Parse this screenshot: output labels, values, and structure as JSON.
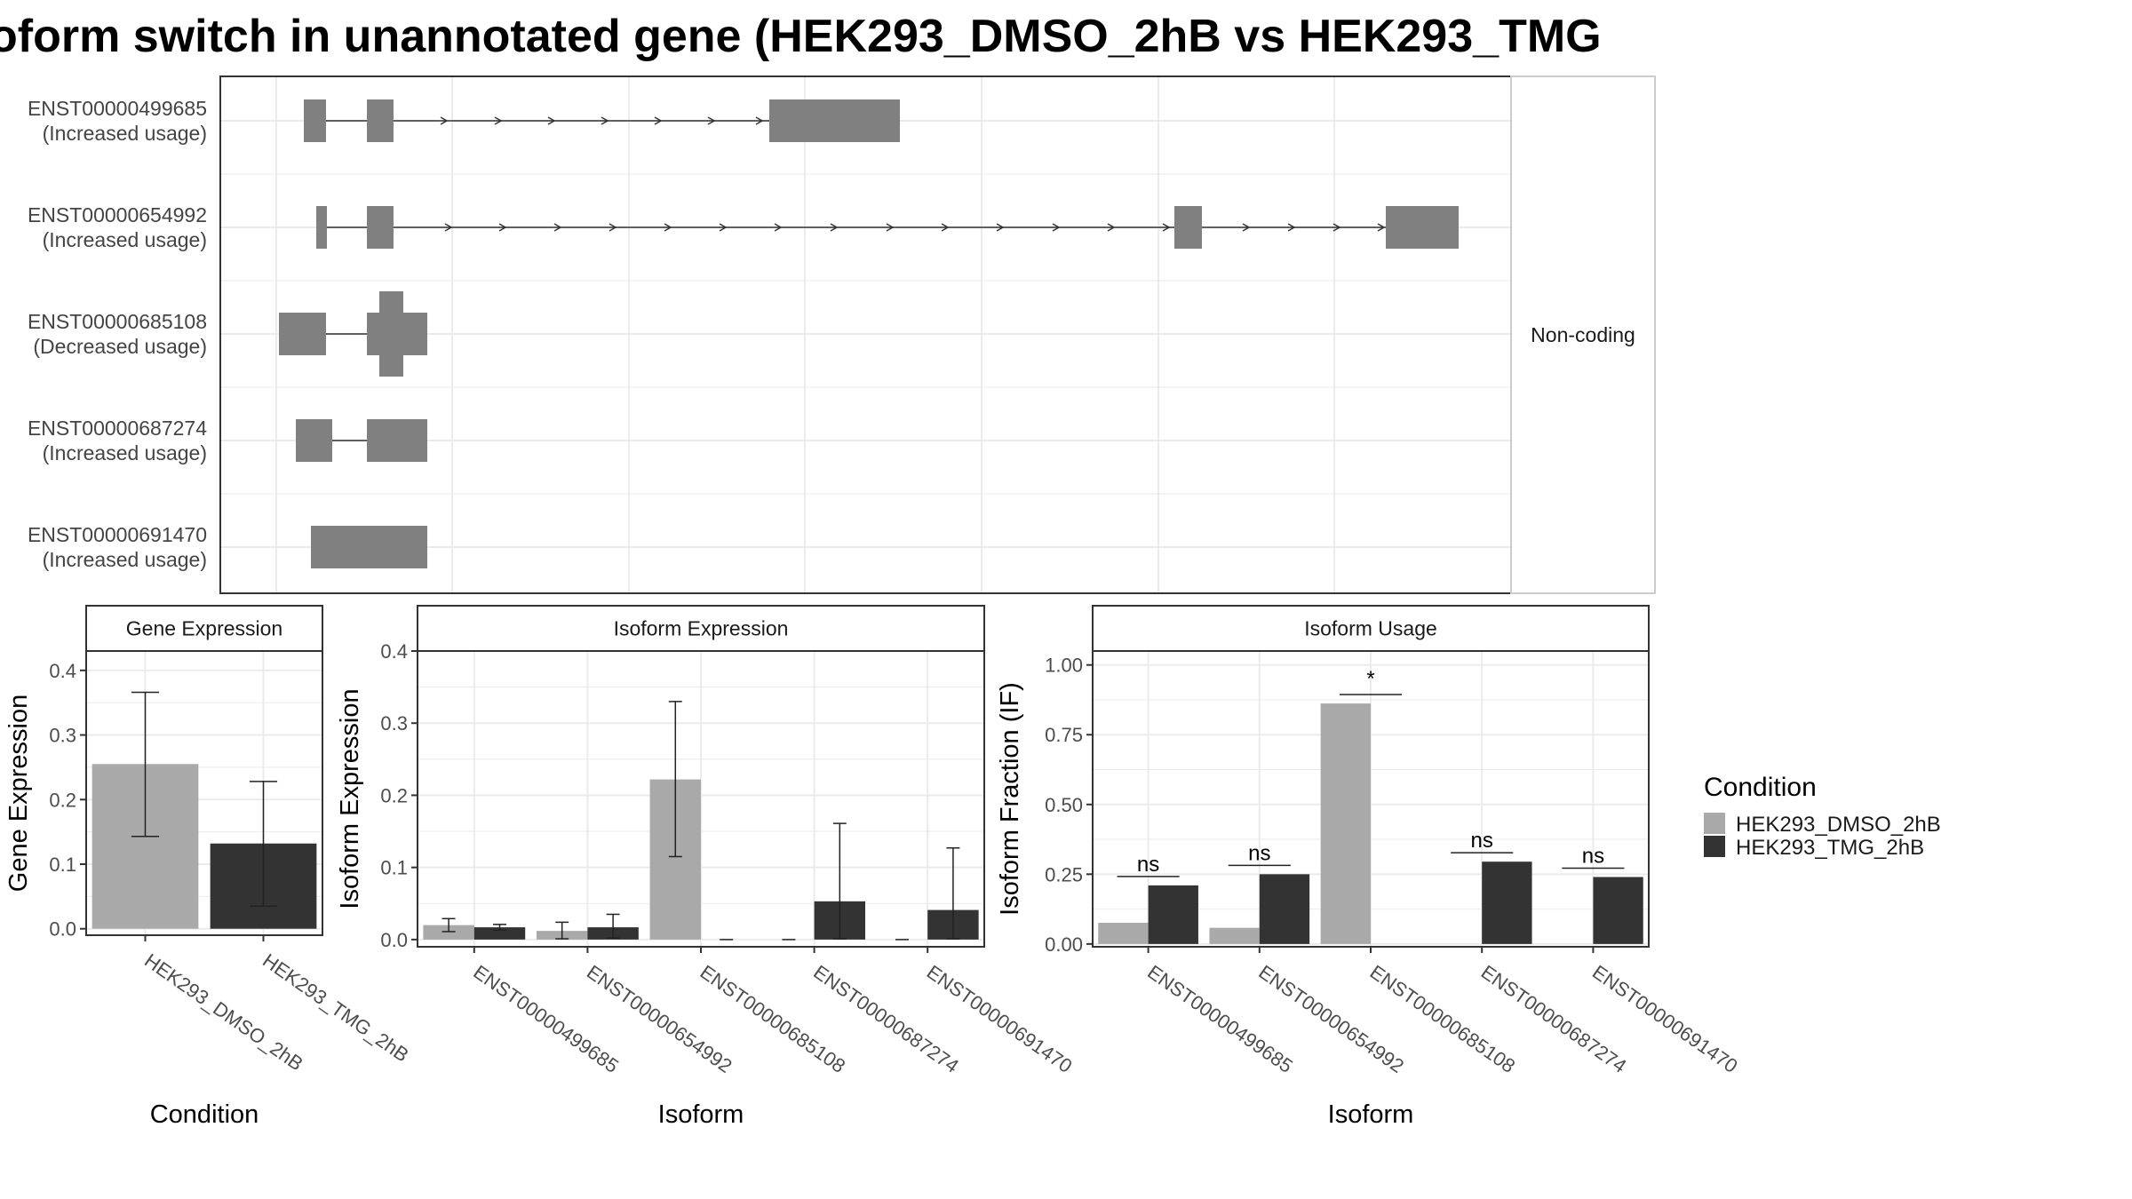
{
  "title": "oform switch in unannotated gene (HEK293_DMSO_2hB vs HEK293_TMG",
  "colors": {
    "dmso": "#A9A9A9",
    "tmg": "#333333",
    "exon": "#808080",
    "grid": "#ebebeb"
  },
  "structure": {
    "side_strip_label": "Non-coding",
    "isoforms": [
      {
        "id": "ENST00000499685",
        "change": "(Increased usage)"
      },
      {
        "id": "ENST00000654992",
        "change": "(Increased usage)"
      },
      {
        "id": "ENST00000685108",
        "change": "(Decreased usage)"
      },
      {
        "id": "ENST00000687274",
        "change": "(Increased usage)"
      },
      {
        "id": "ENST00000691470",
        "change": "(Increased usage)"
      }
    ]
  },
  "legend": {
    "title": "Condition",
    "items": [
      "HEK293_DMSO_2hB",
      "HEK293_TMG_2hB"
    ]
  },
  "chart_data": [
    {
      "type": "bar",
      "title": "Gene Expression",
      "xlabel": "Condition",
      "ylabel": "Gene Expression",
      "ylim": [
        -0.01,
        0.43
      ],
      "yticks": [
        "0.0",
        "0.1",
        "0.2",
        "0.3",
        "0.4"
      ],
      "categories": [
        "HEK293_DMSO_2hB",
        "HEK293_TMG_2hB"
      ],
      "values": [
        0.255,
        0.132
      ],
      "err_low": [
        0.143,
        0.035
      ],
      "err_high": [
        0.366,
        0.228
      ],
      "grid": true
    },
    {
      "type": "bar",
      "title": "Isoform Expression",
      "xlabel": "Isoform",
      "ylabel": "Isoform Expression",
      "ylim": [
        -0.01,
        0.4
      ],
      "yticks": [
        "0.0",
        "0.1",
        "0.2",
        "0.3",
        "0.4"
      ],
      "categories": [
        "ENST00000499685",
        "ENST00000654992",
        "ENST00000685108",
        "ENST00000687274",
        "ENST00000691470"
      ],
      "series": [
        {
          "name": "HEK293_DMSO_2hB",
          "values": [
            0.02,
            0.012,
            0.222,
            0.0,
            0.0
          ],
          "err_low": [
            0.011,
            0.001,
            0.115,
            0.0,
            0.0
          ],
          "err_high": [
            0.029,
            0.024,
            0.33,
            0.0,
            0.0
          ]
        },
        {
          "name": "HEK293_TMG_2hB",
          "values": [
            0.017,
            0.017,
            0.0,
            0.053,
            0.041
          ],
          "err_low": [
            0.013,
            0.002,
            0.0,
            0.001,
            0.001
          ],
          "err_high": [
            0.021,
            0.035,
            0.0,
            0.161,
            0.127
          ]
        }
      ],
      "grid": true
    },
    {
      "type": "bar",
      "title": "Isoform Usage",
      "xlabel": "Isoform",
      "ylabel": "Isoform Fraction (IF)",
      "ylim": [
        -0.01,
        1.05
      ],
      "yticks": [
        "0.00",
        "0.25",
        "0.50",
        "0.75",
        "1.00"
      ],
      "categories": [
        "ENST00000499685",
        "ENST00000654992",
        "ENST00000685108",
        "ENST00000687274",
        "ENST00000691470"
      ],
      "series": [
        {
          "name": "HEK293_DMSO_2hB",
          "values": [
            0.076,
            0.058,
            0.862,
            0.0,
            0.0
          ]
        },
        {
          "name": "HEK293_TMG_2hB",
          "values": [
            0.21,
            0.25,
            0.0,
            0.295,
            0.24
          ]
        }
      ],
      "significance": [
        "ns",
        "ns",
        "*",
        "ns",
        "ns"
      ],
      "grid": true
    }
  ]
}
